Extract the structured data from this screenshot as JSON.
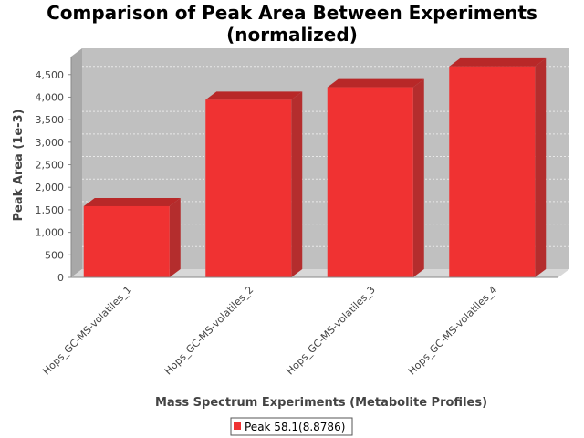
{
  "chart_data": {
    "type": "bar",
    "title_line1": "Comparison of Peak Area Between Experiments",
    "title_line2": "(normalized)",
    "xlabel": "Mass Spectrum Experiments (Metabolite Profiles)",
    "ylabel": "Peak Area (1e-3)",
    "categories": [
      "Hops_GC-MS-volatiles_1",
      "Hops_GC-MS-volatiles_2",
      "Hops_GC-MS-volatiles_3",
      "Hops_GC-MS-volatiles_4"
    ],
    "series": [
      {
        "name": "Peak 58.1(8.8786)",
        "values": [
          1580,
          3940,
          4220,
          4680
        ]
      }
    ],
    "yticks": [
      0,
      500,
      1000,
      1500,
      2000,
      2500,
      3000,
      3500,
      4000,
      4500
    ],
    "ytick_labels": [
      "0",
      "500",
      "1,000",
      "1,500",
      "2,000",
      "2,500",
      "3,000",
      "3,500",
      "4,000",
      "4,500"
    ],
    "ylim": [
      0,
      4900
    ],
    "grid": true,
    "legend_position": "bottom-center",
    "colors": {
      "bar_front": "#f03232",
      "bar_top": "#b82828",
      "bar_side": "#b42d2d",
      "plot_back": "#c0c0c0",
      "plot_floor": "#d8d8d8",
      "gridline": "#e8e8e8"
    }
  }
}
